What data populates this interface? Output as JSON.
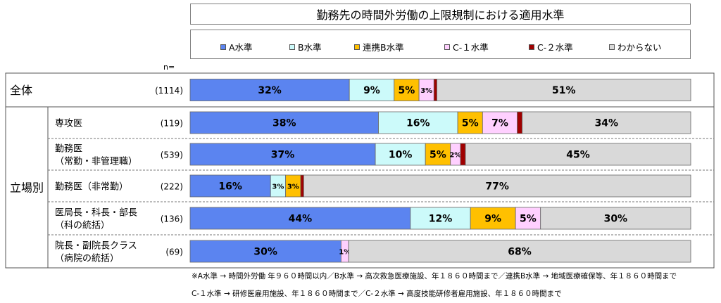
{
  "title": "勤務先の時間外労働の上限規制における適用水準",
  "n_header": "n=",
  "footnotes": [
    "※A水準 → 時間外労働 年９６０時間以内／B水準 → 高次救急医療施設、年１８６０時間まで／連携B水準 → 地域医療確保等、年１８６０時間まで",
    "C-１水準 → 研修医雇用施設、年１８６０時間まで／C-２水準 → 高度技能研修者雇用施設、年１８６０時間まで"
  ],
  "chart_data": {
    "type": "bar",
    "orientation": "horizontal",
    "stacked": "100%",
    "title": "勤務先の時間外労働の上限規制における適用水準",
    "legend_placement": "top",
    "series": [
      {
        "name": "A水準",
        "color": "#5b84f0"
      },
      {
        "name": "B水準",
        "color": "#ccfafa"
      },
      {
        "name": "連携B水準",
        "color": "#ffc000"
      },
      {
        "name": "C-１水準",
        "color": "#ffd0ff"
      },
      {
        "name": "C-２水準",
        "color": "#a00000"
      },
      {
        "name": "わからない",
        "color": "#d9d9d9"
      }
    ],
    "groups": [
      {
        "label": "全体",
        "rows": [
          0
        ]
      },
      {
        "label": "立場別",
        "rows": [
          1,
          2,
          3,
          4,
          5
        ]
      }
    ],
    "rows": [
      {
        "label": [
          "全体"
        ],
        "n": "(1114)",
        "values": [
          32,
          9,
          5,
          3,
          0.6,
          51
        ],
        "labels": [
          "32%",
          "9%",
          "5%",
          "3%",
          "",
          "51%"
        ]
      },
      {
        "label": [
          "専攻医"
        ],
        "n": "(119)",
        "values": [
          38,
          16,
          5,
          7,
          1,
          34
        ],
        "labels": [
          "38%",
          "16%",
          "5%",
          "7%",
          "",
          "34%"
        ]
      },
      {
        "label": [
          "勤務医",
          "（常勤・非管理職）"
        ],
        "n": "(539)",
        "values": [
          37,
          10,
          5,
          2,
          1,
          45
        ],
        "labels": [
          "37%",
          "10%",
          "5%",
          "2%",
          "",
          "45%"
        ]
      },
      {
        "label": [
          "勤務医（非常勤）"
        ],
        "n": "(222)",
        "values": [
          16,
          3,
          3,
          0,
          0.6,
          77
        ],
        "labels": [
          "16%",
          "3%",
          "3%",
          "",
          "",
          "77%"
        ]
      },
      {
        "label": [
          "医局長・科長・部長",
          "（科の統括）"
        ],
        "n": "(136)",
        "values": [
          44,
          12,
          9,
          5,
          0,
          30
        ],
        "labels": [
          "44%",
          "12%",
          "9%",
          "5%",
          "",
          "30%"
        ]
      },
      {
        "label": [
          "院長・副院長クラス",
          "（病院の統括）"
        ],
        "n": "(69)",
        "values": [
          30,
          0,
          0,
          1.5,
          0,
          68
        ],
        "labels": [
          "30%",
          "",
          "",
          "1%",
          "",
          "68%"
        ]
      }
    ]
  }
}
